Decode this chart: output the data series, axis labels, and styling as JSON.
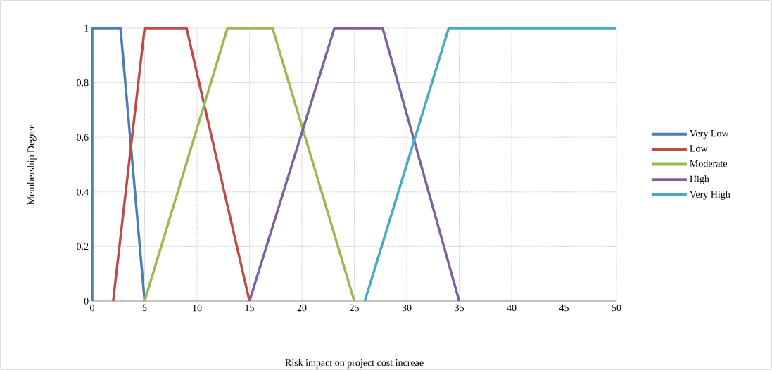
{
  "chart_data": {
    "type": "line",
    "xlabel": "Risk impact on project cost increae",
    "ylabel": "Membership Degree",
    "xlim": [
      0,
      50
    ],
    "ylim": [
      0,
      1
    ],
    "xticks": [
      0,
      5,
      10,
      15,
      20,
      25,
      30,
      35,
      40,
      45,
      50
    ],
    "yticks": [
      0,
      0.2,
      0.4,
      0.6,
      0.8,
      1
    ],
    "grid": true,
    "legend": "right",
    "line_style": "solid",
    "series": [
      {
        "name": "Very Low",
        "color": "#4a7ebb",
        "x": [
          0,
          0,
          2.7,
          5
        ],
        "values": [
          0,
          1,
          1,
          0
        ]
      },
      {
        "name": "Low",
        "color": "#be4b48",
        "x": [
          2,
          5,
          9,
          15
        ],
        "values": [
          0,
          1,
          1,
          0
        ]
      },
      {
        "name": "Moderate",
        "color": "#98b954",
        "x": [
          5,
          12.9,
          17.2,
          25
        ],
        "values": [
          0,
          1,
          1,
          0
        ]
      },
      {
        "name": "High",
        "color": "#7d60a0",
        "x": [
          15,
          23.1,
          27.7,
          35
        ],
        "values": [
          0,
          1,
          1,
          0
        ]
      },
      {
        "name": "Very High",
        "color": "#46aac5",
        "x": [
          26,
          34,
          50
        ],
        "values": [
          0,
          1,
          1
        ]
      }
    ]
  }
}
